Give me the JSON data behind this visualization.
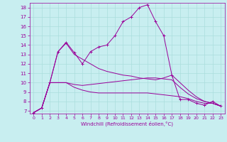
{
  "xlabel": "Windchill (Refroidissement éolien,°C)",
  "bg_color": "#c8eef0",
  "grid_color": "#aadddd",
  "line_color": "#990099",
  "xlim": [
    -0.5,
    23.5
  ],
  "ylim": [
    6.7,
    18.5
  ],
  "xticks": [
    0,
    1,
    2,
    3,
    4,
    5,
    6,
    7,
    8,
    9,
    10,
    11,
    12,
    13,
    14,
    15,
    16,
    17,
    18,
    19,
    20,
    21,
    22,
    23
  ],
  "yticks": [
    7,
    8,
    9,
    10,
    11,
    12,
    13,
    14,
    15,
    16,
    17,
    18
  ],
  "series": [
    {
      "x": [
        0,
        1,
        2,
        3,
        4,
        5,
        6,
        7,
        8,
        9,
        10,
        11,
        12,
        13,
        14,
        15,
        16,
        17,
        18,
        19,
        20,
        21,
        22,
        23
      ],
      "y": [
        6.8,
        7.3,
        10.0,
        13.3,
        14.3,
        13.2,
        12.0,
        13.3,
        13.8,
        14.0,
        15.0,
        16.5,
        17.0,
        18.0,
        18.3,
        16.5,
        15.0,
        10.8,
        8.2,
        8.2,
        7.8,
        7.6,
        8.0,
        7.5
      ],
      "marker": "+"
    },
    {
      "x": [
        0,
        1,
        2,
        3,
        4,
        5,
        6,
        7,
        8,
        9,
        10,
        11,
        12,
        13,
        14,
        15,
        16,
        17,
        18,
        19,
        20,
        21,
        22,
        23
      ],
      "y": [
        6.8,
        7.3,
        10.0,
        13.3,
        14.2,
        13.0,
        12.5,
        12.0,
        11.5,
        11.2,
        11.0,
        10.8,
        10.7,
        10.5,
        10.4,
        10.3,
        10.5,
        10.8,
        10.0,
        9.2,
        8.5,
        8.0,
        7.8,
        7.5
      ],
      "marker": null
    },
    {
      "x": [
        0,
        1,
        2,
        3,
        4,
        5,
        6,
        7,
        8,
        9,
        10,
        11,
        12,
        13,
        14,
        15,
        16,
        17,
        18,
        19,
        20,
        21,
        22,
        23
      ],
      "y": [
        6.8,
        7.3,
        10.0,
        10.0,
        10.0,
        9.8,
        9.7,
        9.8,
        9.9,
        10.0,
        10.1,
        10.2,
        10.3,
        10.4,
        10.5,
        10.5,
        10.4,
        10.3,
        9.5,
        8.8,
        8.3,
        8.0,
        7.8,
        7.5
      ],
      "marker": null
    },
    {
      "x": [
        0,
        1,
        2,
        3,
        4,
        5,
        6,
        7,
        8,
        9,
        10,
        11,
        12,
        13,
        14,
        15,
        16,
        17,
        18,
        19,
        20,
        21,
        22,
        23
      ],
      "y": [
        6.8,
        7.3,
        10.0,
        10.0,
        10.0,
        9.5,
        9.2,
        9.0,
        8.9,
        8.9,
        8.9,
        8.9,
        8.9,
        8.9,
        8.9,
        8.8,
        8.7,
        8.6,
        8.5,
        8.3,
        8.0,
        7.8,
        7.8,
        7.5
      ],
      "marker": null
    }
  ]
}
